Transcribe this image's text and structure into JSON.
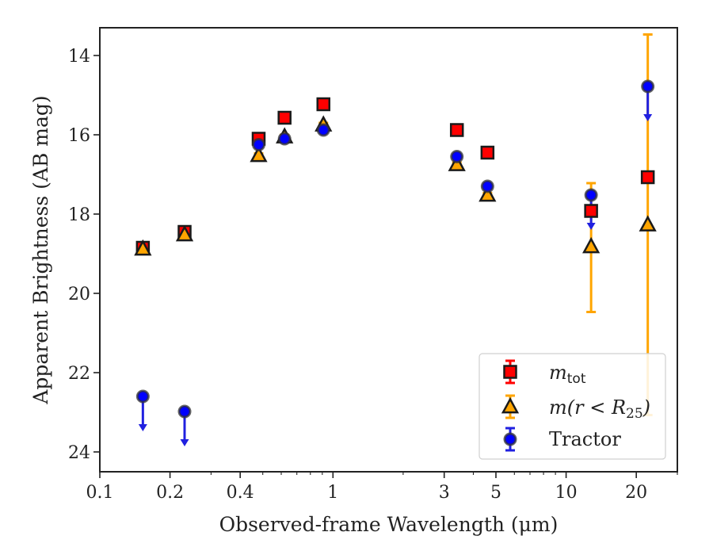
{
  "chart_data": {
    "type": "scatter",
    "title": "",
    "xlabel": "Observed-frame Wavelength (μm)",
    "ylabel": "Apparent Brightness (AB mag)",
    "x_scale": "log",
    "xlim": [
      0.1,
      30
    ],
    "ylim": [
      24.5,
      13.3
    ],
    "y_inverted": true,
    "x_ticks": [
      {
        "value": 0.1,
        "label": "0.1"
      },
      {
        "value": 0.2,
        "label": "0.2"
      },
      {
        "value": 0.4,
        "label": "0.4"
      },
      {
        "value": 1,
        "label": "1"
      },
      {
        "value": 3,
        "label": "3"
      },
      {
        "value": 5,
        "label": "5"
      },
      {
        "value": 10,
        "label": "10"
      },
      {
        "value": 20,
        "label": "20"
      }
    ],
    "y_ticks": [
      {
        "value": 14,
        "label": "14"
      },
      {
        "value": 16,
        "label": "16"
      },
      {
        "value": 18,
        "label": "18"
      },
      {
        "value": 20,
        "label": "20"
      },
      {
        "value": 22,
        "label": "22"
      },
      {
        "value": 24,
        "label": "24"
      }
    ],
    "grid": false,
    "legend_position": "lower-right",
    "series": [
      {
        "name": "m_tot",
        "marker": "square",
        "color": "#ff0000",
        "errcolor": "#ff0000",
        "points": [
          {
            "x": 0.153,
            "y": 18.85,
            "err": 0.05
          },
          {
            "x": 0.231,
            "y": 18.45,
            "err": 0.05
          },
          {
            "x": 0.48,
            "y": 16.1,
            "err": 0.05
          },
          {
            "x": 0.62,
            "y": 15.57,
            "err": 0.05
          },
          {
            "x": 0.91,
            "y": 15.23,
            "err": 0.05
          },
          {
            "x": 3.4,
            "y": 15.88,
            "err": 0.05
          },
          {
            "x": 4.6,
            "y": 16.45,
            "err": 0.05
          },
          {
            "x": 12.8,
            "y": 17.92,
            "err": 0.05
          },
          {
            "x": 22.4,
            "y": 17.07,
            "err": 0.05
          }
        ]
      },
      {
        "name": "m(r<R25)",
        "marker": "triangle",
        "color": "#ffa500",
        "errcolor": "#ffa500",
        "points": [
          {
            "x": 0.153,
            "y": 18.88,
            "err": 0.05
          },
          {
            "x": 0.231,
            "y": 18.52,
            "err": 0.05
          },
          {
            "x": 0.48,
            "y": 16.52,
            "err": 0.05
          },
          {
            "x": 0.62,
            "y": 16.05,
            "err": 0.05
          },
          {
            "x": 0.91,
            "y": 15.75,
            "err": 0.05
          },
          {
            "x": 3.4,
            "y": 16.75,
            "err": 0.05
          },
          {
            "x": 4.6,
            "y": 17.52,
            "err": 0.05
          },
          {
            "x": 12.8,
            "y": 18.82,
            "err_low": 1.65,
            "err_high": 1.6
          },
          {
            "x": 22.4,
            "y": 18.27,
            "err_low": 4.8,
            "err_high": 4.8
          }
        ]
      },
      {
        "name": "Tractor",
        "marker": "circle",
        "color": "#0000ff",
        "errcolor": "#2020e0",
        "points": [
          {
            "x": 0.153,
            "y": 22.6,
            "upper_limit": true
          },
          {
            "x": 0.231,
            "y": 22.98,
            "upper_limit": true
          },
          {
            "x": 0.48,
            "y": 16.25
          },
          {
            "x": 0.62,
            "y": 16.1
          },
          {
            "x": 0.91,
            "y": 15.88
          },
          {
            "x": 3.4,
            "y": 16.55
          },
          {
            "x": 4.6,
            "y": 17.3
          },
          {
            "x": 12.8,
            "y": 17.52,
            "upper_limit": true
          },
          {
            "x": 22.4,
            "y": 14.78,
            "upper_limit": true
          }
        ]
      }
    ],
    "legend": [
      {
        "marker": "square",
        "label_main": "m",
        "label_sub": "tot",
        "label_tail": ""
      },
      {
        "marker": "triangle",
        "label_main": "m(r < R",
        "label_sub": "25",
        "label_tail": ")"
      },
      {
        "marker": "circle",
        "label_main": "Tractor",
        "label_sub": "",
        "label_tail": ""
      }
    ]
  }
}
